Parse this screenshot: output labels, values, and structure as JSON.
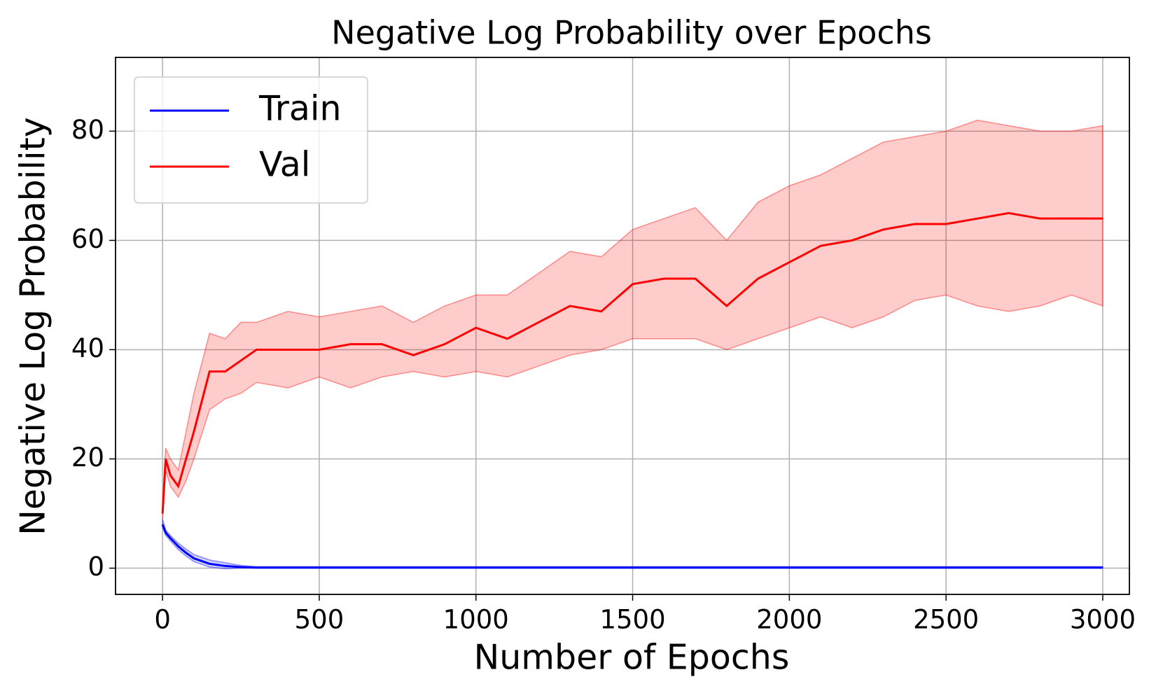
{
  "chart_data": {
    "type": "line",
    "title": "Negative Log Probability over Epochs",
    "x_label": "Number of Epochs",
    "y_label": "Negative Log Probability",
    "x": [
      0,
      10,
      25,
      50,
      75,
      100,
      150,
      200,
      250,
      300,
      400,
      500,
      600,
      700,
      800,
      900,
      1000,
      1100,
      1200,
      1300,
      1400,
      1500,
      1600,
      1700,
      1800,
      1900,
      2000,
      2100,
      2200,
      2300,
      2400,
      2500,
      2600,
      2700,
      2800,
      2900,
      3000
    ],
    "series": [
      {
        "name": "Train",
        "color": "#0000ff",
        "values": [
          8,
          6.5,
          5.5,
          4,
          2.8,
          1.8,
          0.8,
          0.4,
          0.2,
          0.1,
          0.1,
          0.1,
          0.1,
          0.1,
          0.1,
          0.1,
          0.1,
          0.1,
          0.1,
          0.1,
          0.1,
          0.1,
          0.1,
          0.1,
          0.1,
          0.1,
          0.1,
          0.1,
          0.1,
          0.1,
          0.1,
          0.1,
          0.1,
          0.1,
          0.1,
          0.1,
          0.1
        ],
        "upper": [
          9,
          7,
          6,
          4.6,
          3.5,
          2.5,
          1.5,
          1,
          0.5,
          0.3,
          0.3,
          0.3,
          0.3,
          0.3,
          0.3,
          0.3,
          0.3,
          0.3,
          0.3,
          0.3,
          0.3,
          0.3,
          0.3,
          0.3,
          0.3,
          0.3,
          0.3,
          0.3,
          0.3,
          0.3,
          0.3,
          0.3,
          0.3,
          0.3,
          0.3,
          0.3,
          0.3
        ],
        "lower": [
          7.5,
          6,
          5,
          3.4,
          2.2,
          1.2,
          0.2,
          -0.1,
          0,
          0,
          0,
          0,
          0,
          0,
          0,
          0,
          0,
          0,
          0,
          0,
          0,
          0,
          0,
          0,
          0,
          0,
          0,
          0,
          0,
          0,
          0,
          0,
          0,
          0,
          0,
          0,
          0
        ]
      },
      {
        "name": "Val",
        "color": "#ff0000",
        "values": [
          10,
          20,
          17,
          15,
          20,
          25,
          36,
          36,
          38,
          40,
          40,
          40,
          41,
          41,
          39,
          41,
          44,
          42,
          45,
          48,
          47,
          52,
          53,
          53,
          48,
          53,
          56,
          59,
          60,
          62,
          63,
          63,
          64,
          65,
          64,
          64,
          64
        ],
        "upper": [
          12,
          22,
          20,
          18,
          25,
          32,
          43,
          42,
          45,
          45,
          47,
          46,
          47,
          48,
          45,
          48,
          50,
          50,
          54,
          58,
          57,
          62,
          64,
          66,
          60,
          67,
          70,
          72,
          75,
          78,
          79,
          80,
          82,
          81,
          80,
          80,
          81
        ],
        "lower": [
          9,
          18,
          15,
          13,
          16,
          20,
          29,
          31,
          32,
          34,
          33,
          35,
          33,
          35,
          36,
          35,
          36,
          35,
          37,
          39,
          40,
          42,
          42,
          42,
          40,
          42,
          44,
          46,
          44,
          46,
          49,
          50,
          48,
          47,
          48,
          50,
          48
        ]
      }
    ],
    "xlim": [
      -150,
      3085
    ],
    "ylim": [
      -4.8,
      93.5
    ],
    "xticks": [
      0,
      500,
      1000,
      1500,
      2000,
      2500,
      3000
    ],
    "yticks": [
      0,
      20,
      40,
      60,
      80
    ],
    "grid": true,
    "legend": "upper left"
  }
}
